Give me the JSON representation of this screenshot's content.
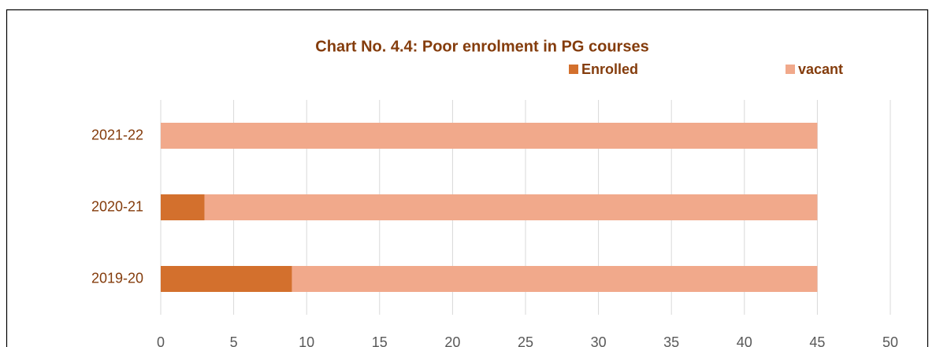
{
  "chart_data": {
    "type": "stacked_bar_horizontal",
    "title": "Chart No. 4.4: Poor enrolment in PG courses",
    "categories": [
      "2019-20",
      "2020-21",
      "2021-22"
    ],
    "series": [
      {
        "name": "Enrolled",
        "color": "#d3702d",
        "values": [
          9,
          3,
          0
        ]
      },
      {
        "name": "vacant",
        "color": "#f1a98b",
        "values": [
          36,
          42,
          45
        ]
      }
    ],
    "xlim": [
      0,
      50
    ],
    "xticks": [
      0,
      5,
      10,
      15,
      20,
      25,
      30,
      35,
      40,
      45,
      50
    ],
    "grid": true,
    "legend": "top-right"
  }
}
